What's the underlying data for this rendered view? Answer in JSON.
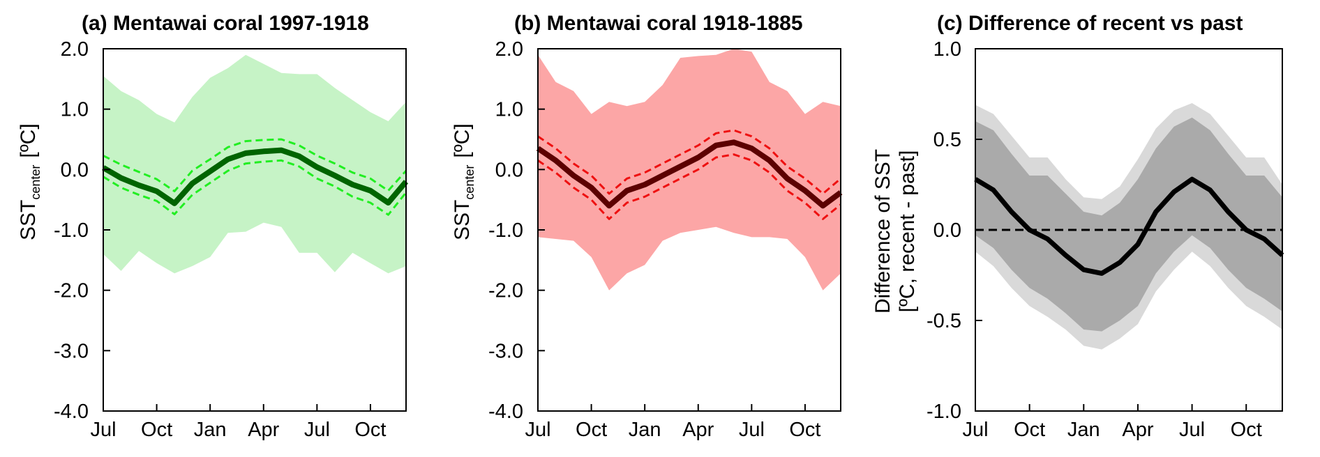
{
  "chart_data": [
    {
      "type": "line",
      "title": "(a) Mentawai coral 1997-1918",
      "ylabel_main": "SST",
      "ylabel_sub": "center",
      "ylabel_unit": "[ºC]",
      "ylim": [
        -4.0,
        2.0
      ],
      "yticks": [
        "2.0",
        "1.0",
        "0.0",
        "-1.0",
        "-2.0",
        "-3.0",
        "-4.0"
      ],
      "xticks": [
        "Jul",
        "Oct",
        "Jan",
        "Apr",
        "Jul",
        "Oct"
      ],
      "x": [
        0,
        1,
        2,
        3,
        4,
        5,
        6,
        7,
        8,
        9,
        10,
        11,
        12,
        13,
        14,
        15,
        16,
        17
      ],
      "colors": {
        "band": "#c6f3c6",
        "mean": "#006400",
        "ci": "#22ee22"
      },
      "series": [
        {
          "name": "mean",
          "values": [
            0.03,
            -0.14,
            -0.26,
            -0.36,
            -0.56,
            -0.23,
            -0.03,
            0.17,
            0.27,
            0.3,
            0.32,
            0.22,
            0.04,
            -0.1,
            -0.25,
            -0.35,
            -0.55,
            -0.2
          ]
        },
        {
          "name": "ci_upper",
          "values": [
            0.23,
            0.08,
            -0.04,
            -0.16,
            -0.36,
            -0.02,
            0.17,
            0.37,
            0.47,
            0.49,
            0.5,
            0.4,
            0.23,
            0.1,
            -0.05,
            -0.15,
            -0.35,
            -0.02
          ]
        },
        {
          "name": "ci_lower",
          "values": [
            -0.12,
            -0.3,
            -0.42,
            -0.52,
            -0.74,
            -0.42,
            -0.22,
            -0.02,
            0.1,
            0.13,
            0.15,
            0.05,
            -0.15,
            -0.28,
            -0.45,
            -0.55,
            -0.75,
            -0.38
          ]
        },
        {
          "name": "range_upper",
          "values": [
            1.55,
            1.3,
            1.15,
            0.92,
            0.78,
            1.2,
            1.52,
            1.68,
            1.9,
            1.75,
            1.6,
            1.58,
            1.58,
            1.35,
            1.15,
            0.95,
            0.8,
            1.12
          ]
        },
        {
          "name": "range_lower",
          "values": [
            -1.4,
            -1.68,
            -1.35,
            -1.55,
            -1.72,
            -1.6,
            -1.45,
            -1.05,
            -1.03,
            -0.88,
            -0.95,
            -1.38,
            -1.38,
            -1.7,
            -1.38,
            -1.55,
            -1.72,
            -1.6
          ]
        }
      ]
    },
    {
      "type": "line",
      "title": "(b) Mentawai coral 1918-1885",
      "ylabel_main": "SST",
      "ylabel_sub": "center",
      "ylabel_unit": "[ºC]",
      "ylim": [
        -4.0,
        2.0
      ],
      "yticks": [
        "2.0",
        "1.0",
        "0.0",
        "-1.0",
        "-2.0",
        "-3.0",
        "-4.0"
      ],
      "xticks": [
        "Jul",
        "Oct",
        "Jan",
        "Apr",
        "Jul",
        "Oct"
      ],
      "x": [
        0,
        1,
        2,
        3,
        4,
        5,
        6,
        7,
        8,
        9,
        10,
        11,
        12,
        13,
        14,
        15,
        16,
        17
      ],
      "colors": {
        "band": "#fca6a6",
        "mean": "#5c0000",
        "ci": "#ee1111"
      },
      "series": [
        {
          "name": "mean",
          "values": [
            0.35,
            0.15,
            -0.1,
            -0.3,
            -0.6,
            -0.35,
            -0.25,
            -0.1,
            0.05,
            0.2,
            0.4,
            0.45,
            0.35,
            0.15,
            -0.15,
            -0.35,
            -0.6,
            -0.38
          ]
        },
        {
          "name": "ci_upper",
          "values": [
            0.55,
            0.35,
            0.1,
            -0.1,
            -0.4,
            -0.15,
            -0.05,
            0.1,
            0.25,
            0.4,
            0.6,
            0.65,
            0.55,
            0.35,
            0.05,
            -0.15,
            -0.4,
            -0.15
          ]
        },
        {
          "name": "ci_lower",
          "values": [
            0.15,
            -0.05,
            -0.3,
            -0.5,
            -0.82,
            -0.55,
            -0.45,
            -0.3,
            -0.15,
            0.0,
            0.2,
            0.25,
            0.15,
            -0.05,
            -0.35,
            -0.55,
            -0.82,
            -0.58
          ]
        },
        {
          "name": "range_upper",
          "values": [
            1.9,
            1.45,
            1.3,
            0.92,
            1.12,
            1.05,
            1.12,
            1.4,
            1.85,
            1.88,
            1.9,
            2.0,
            1.95,
            1.45,
            1.3,
            0.92,
            1.12,
            1.05
          ]
        },
        {
          "name": "range_lower",
          "values": [
            -1.12,
            -1.15,
            -1.18,
            -1.45,
            -2.0,
            -1.72,
            -1.58,
            -1.18,
            -1.05,
            -1.0,
            -0.95,
            -1.05,
            -1.12,
            -1.12,
            -1.15,
            -1.45,
            -2.0,
            -1.72
          ]
        }
      ]
    },
    {
      "type": "line",
      "title": "(c) Difference of recent vs past",
      "ylabel_line1": "Difference of SST",
      "ylabel_line2": "[ºC, recent - past]",
      "ylim": [
        -1.0,
        1.0
      ],
      "yticks": [
        "1.0",
        "0.5",
        "0.0",
        "-0.5",
        "-1.0"
      ],
      "xticks": [
        "Jul",
        "Oct",
        "Jan",
        "Apr",
        "Jul",
        "Oct"
      ],
      "x": [
        0,
        1,
        2,
        3,
        4,
        5,
        6,
        7,
        8,
        9,
        10,
        11,
        12,
        13,
        14,
        15,
        16,
        17
      ],
      "colors": {
        "outer": "#d9d9d9",
        "inner": "#aaaaaa",
        "mean": "#000000",
        "zero": "#000000"
      },
      "series": [
        {
          "name": "difference",
          "values": [
            0.28,
            0.22,
            0.1,
            0.0,
            -0.05,
            -0.14,
            -0.22,
            -0.24,
            -0.18,
            -0.08,
            0.1,
            0.21,
            0.28,
            0.22,
            0.1,
            0.0,
            -0.05,
            -0.14
          ]
        },
        {
          "name": "outer_upper",
          "values": [
            0.69,
            0.64,
            0.52,
            0.4,
            0.4,
            0.28,
            0.18,
            0.17,
            0.24,
            0.39,
            0.56,
            0.66,
            0.7,
            0.64,
            0.52,
            0.4,
            0.4,
            0.25
          ]
        },
        {
          "name": "outer_lower",
          "values": [
            -0.12,
            -0.2,
            -0.32,
            -0.42,
            -0.48,
            -0.55,
            -0.64,
            -0.66,
            -0.6,
            -0.52,
            -0.34,
            -0.22,
            -0.12,
            -0.2,
            -0.32,
            -0.42,
            -0.48,
            -0.55
          ]
        },
        {
          "name": "inner_upper",
          "values": [
            0.6,
            0.55,
            0.42,
            0.3,
            0.3,
            0.2,
            0.1,
            0.08,
            0.15,
            0.28,
            0.45,
            0.57,
            0.62,
            0.55,
            0.42,
            0.3,
            0.3,
            0.18
          ]
        },
        {
          "name": "inner_lower",
          "values": [
            -0.03,
            -0.1,
            -0.22,
            -0.32,
            -0.38,
            -0.46,
            -0.55,
            -0.56,
            -0.5,
            -0.42,
            -0.24,
            -0.12,
            -0.03,
            -0.1,
            -0.22,
            -0.32,
            -0.38,
            -0.45
          ]
        }
      ]
    }
  ]
}
